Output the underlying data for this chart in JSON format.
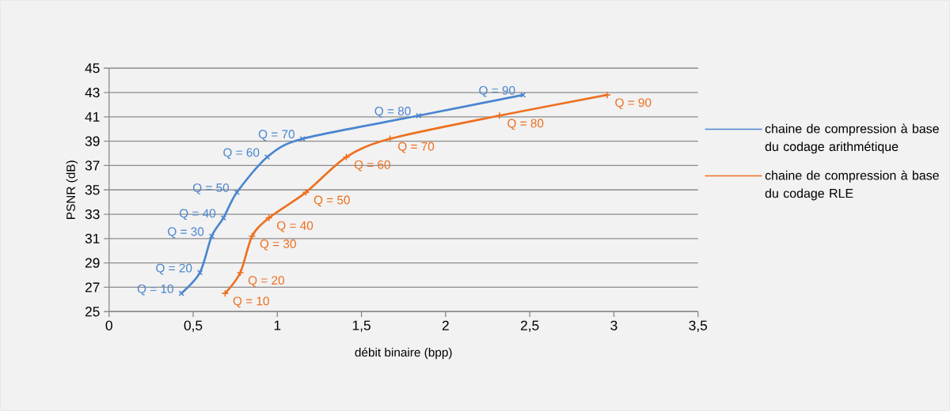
{
  "chart_data": {
    "type": "line",
    "xlabel": "débit binaire (bpp)",
    "ylabel": "PSNR (dB)",
    "xlim": [
      0,
      3.5
    ],
    "ylim": [
      25,
      45
    ],
    "xticks": [
      0,
      {
        "value": 0.5,
        "label": "0,5"
      },
      1,
      {
        "value": 1.5,
        "label": "1,5"
      },
      2,
      {
        "value": 2.5,
        "label": "2,5"
      },
      3,
      {
        "value": 3.5,
        "label": "3,5"
      }
    ],
    "yticks": [
      25,
      27,
      29,
      31,
      33,
      35,
      37,
      39,
      41,
      43,
      45
    ],
    "grid": "y",
    "legend": "right",
    "series": [
      {
        "name": "chaine de compression à base  du codage arithmétique",
        "color": "#4a86d0",
        "marker": "cross",
        "x": [
          0.43,
          0.54,
          0.61,
          0.68,
          0.76,
          0.94,
          1.15,
          1.84,
          2.46
        ],
        "values": [
          26.5,
          28.2,
          31.2,
          32.7,
          34.8,
          37.7,
          39.2,
          41.1,
          42.8
        ]
      },
      {
        "name": "chaine de compression à base du codage RLE",
        "color": "#ed7020",
        "marker": "plus",
        "x": [
          0.69,
          0.78,
          0.85,
          0.95,
          1.17,
          1.41,
          1.67,
          2.32,
          2.96
        ],
        "values": [
          26.5,
          28.2,
          31.2,
          32.7,
          34.8,
          37.7,
          39.2,
          41.1,
          42.8
        ]
      }
    ],
    "annotations": [
      {
        "text": "Q = 10",
        "x": 0.43,
        "y": 26.5
      },
      {
        "text": "Q = 20",
        "x": 0.54,
        "y": 28.2
      },
      {
        "text": "Q = 30",
        "x": 0.61,
        "y": 31.2
      },
      {
        "text": "Q = 40",
        "x": 0.68,
        "y": 32.7
      },
      {
        "text": "Q = 50",
        "x": 0.76,
        "y": 34.8
      },
      {
        "text": "Q = 60",
        "x": 0.94,
        "y": 37.7
      },
      {
        "text": "Q = 70",
        "x": 1.15,
        "y": 39.2
      },
      {
        "text": "Q = 80",
        "x": 1.84,
        "y": 41.1
      },
      {
        "text": "Q = 90",
        "x": 2.46,
        "y": 42.8
      },
      {
        "text": "Q = 10",
        "x": 0.69,
        "y": 26.5
      },
      {
        "text": "Q = 20",
        "x": 0.78,
        "y": 28.2
      },
      {
        "text": "Q = 30",
        "x": 0.85,
        "y": 31.2
      },
      {
        "text": "Q = 40",
        "x": 0.95,
        "y": 32.7
      },
      {
        "text": "Q = 50",
        "x": 1.17,
        "y": 34.8
      },
      {
        "text": "Q = 60",
        "x": 1.41,
        "y": 37.7
      },
      {
        "text": "Q = 70",
        "x": 1.67,
        "y": 39.2
      },
      {
        "text": "Q = 80",
        "x": 2.32,
        "y": 41.1
      },
      {
        "text": "Q = 90",
        "x": 2.96,
        "y": 42.8
      }
    ]
  }
}
